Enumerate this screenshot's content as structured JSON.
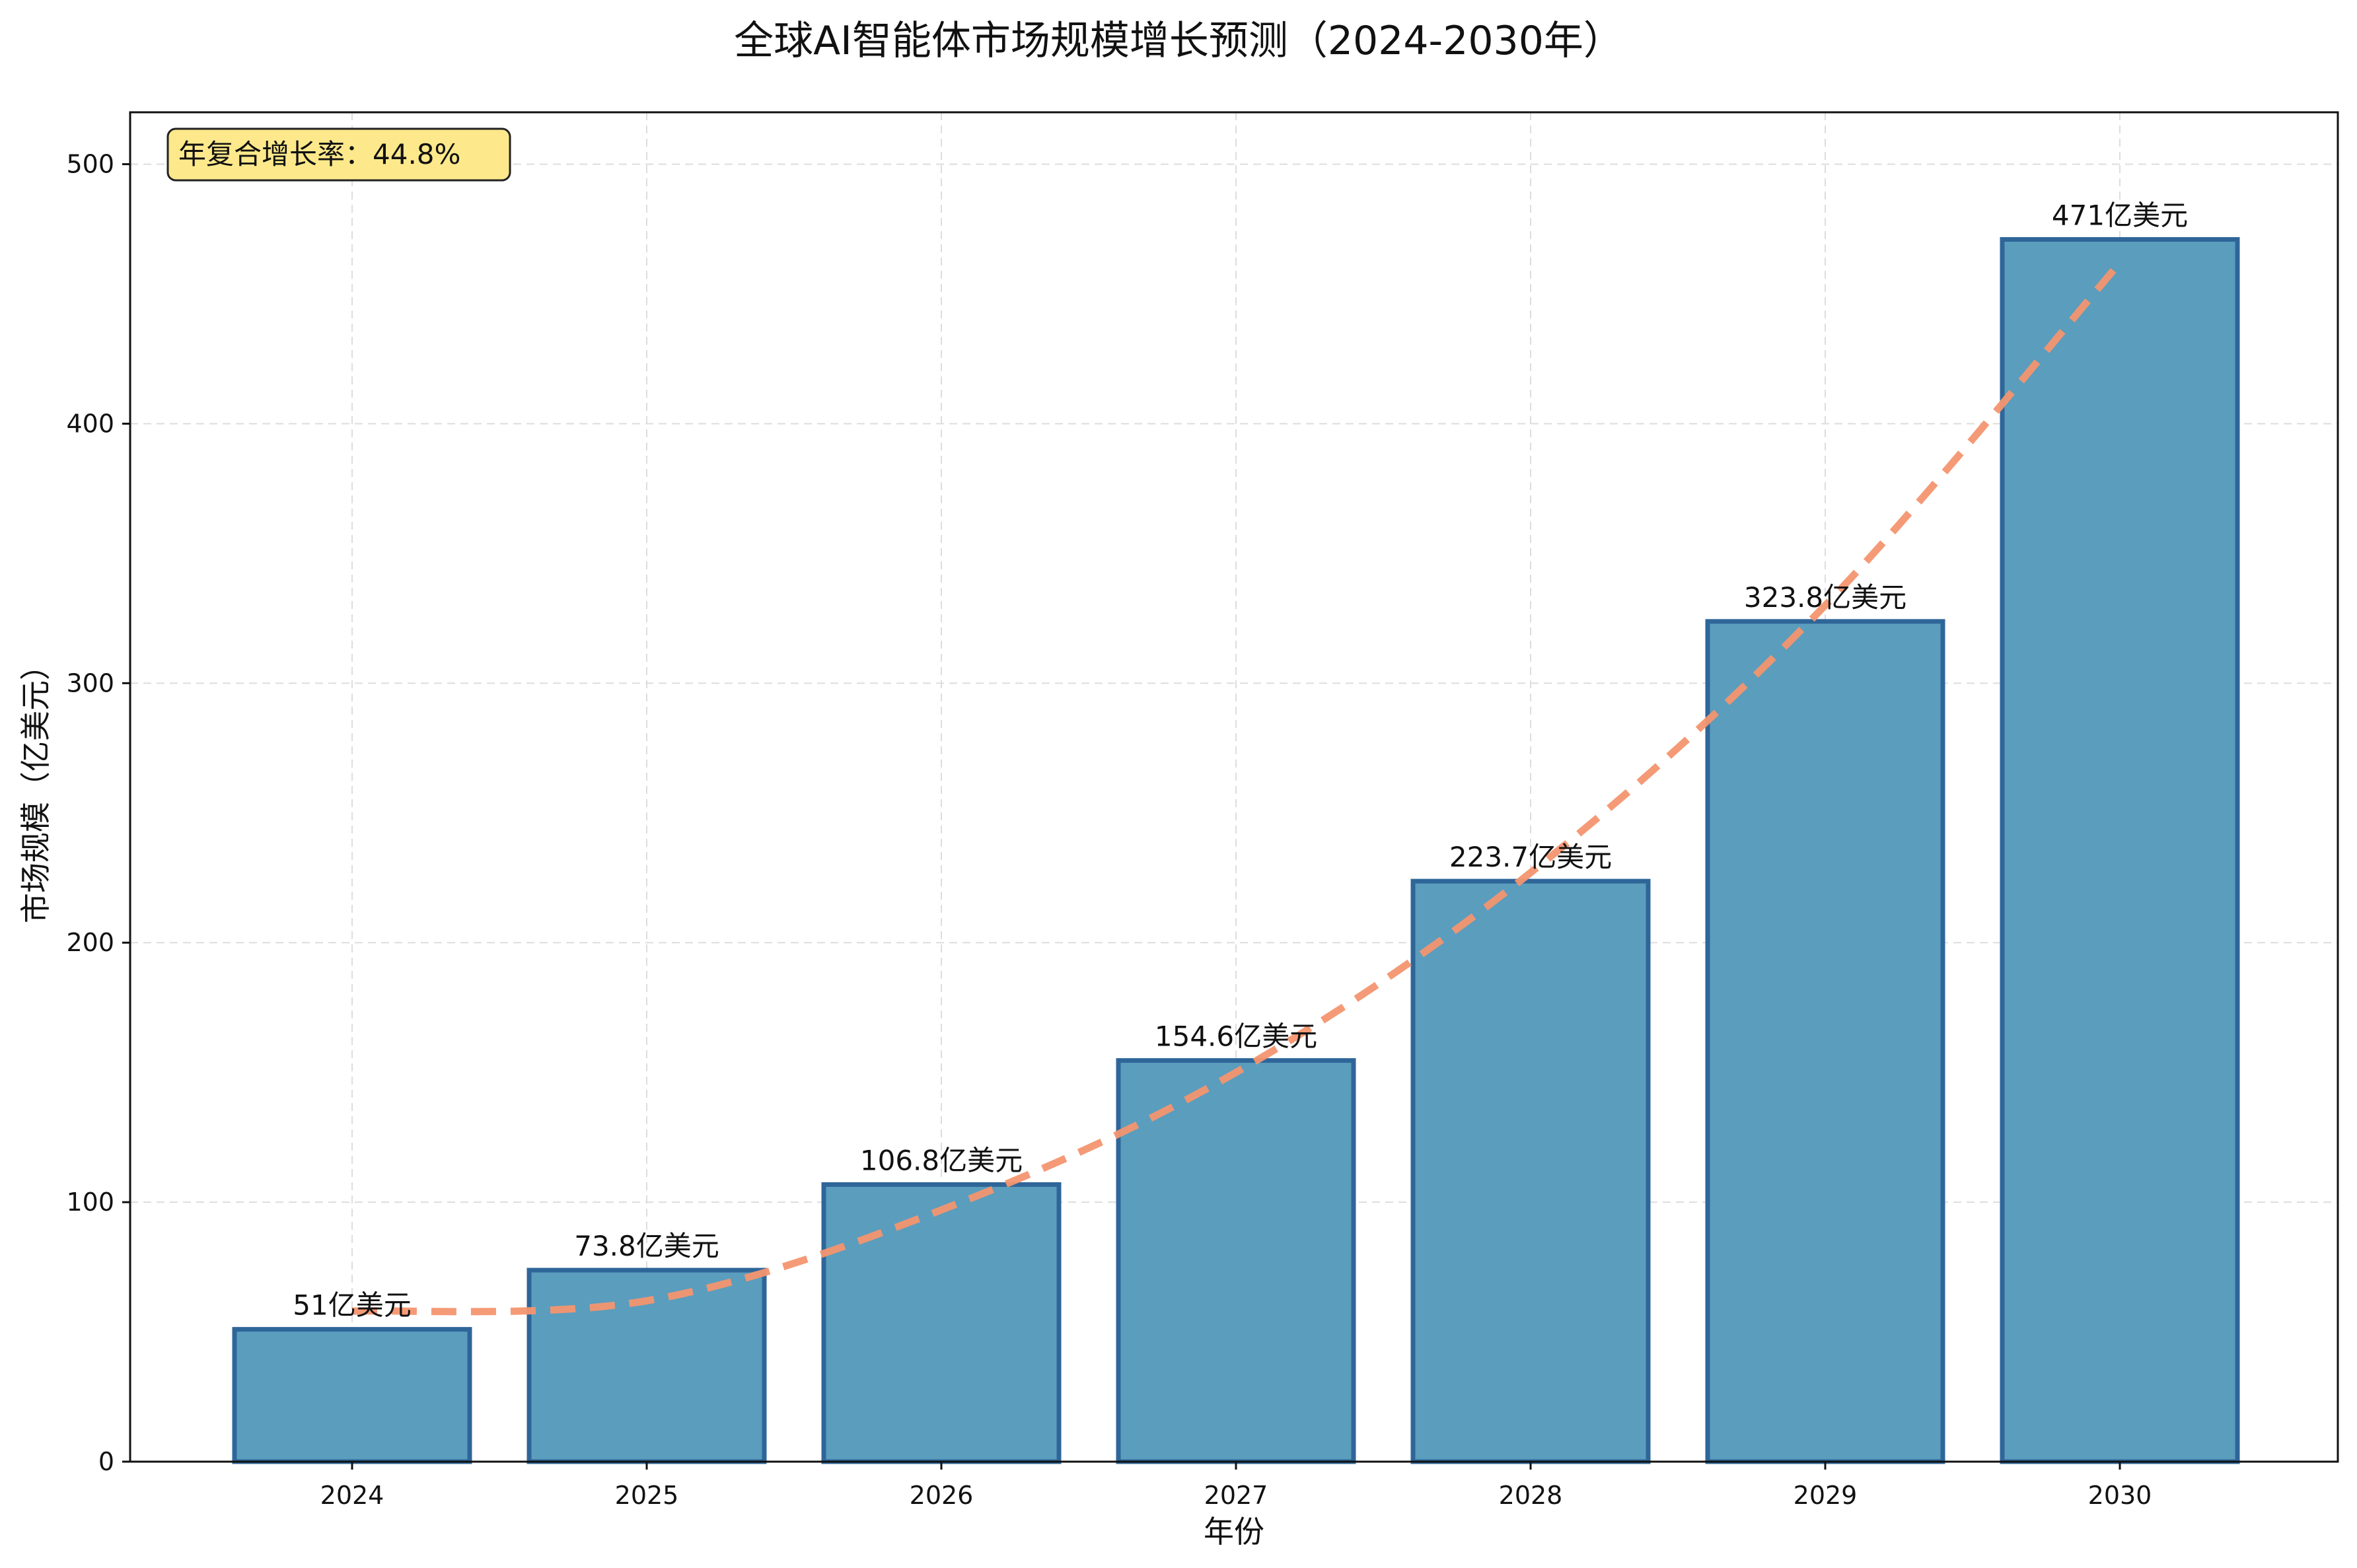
{
  "chart_data": {
    "type": "bar",
    "title": "全球AI智能体市场规模增长预测（2024-2030年）",
    "xlabel": "年份",
    "ylabel": "市场规模（亿美元）",
    "categories": [
      "2024",
      "2025",
      "2026",
      "2027",
      "2028",
      "2029",
      "2030"
    ],
    "values": [
      51,
      73.8,
      106.8,
      154.6,
      223.7,
      323.8,
      471
    ],
    "data_labels": [
      "51亿美元",
      "73.8亿美元",
      "106.8亿美元",
      "154.6亿美元",
      "223.7亿美元",
      "323.8亿美元",
      "471亿美元"
    ],
    "ylim": [
      0,
      520
    ],
    "yticks": [
      0,
      100,
      200,
      300,
      400,
      500
    ],
    "grid": true,
    "annotation": "年复合增长率：44.8%",
    "trend_line": {
      "style": "dashed",
      "values": [
        58,
        62,
        97,
        150,
        227,
        330,
        462
      ]
    },
    "colors": {
      "bar_fill": "#5b9dbd",
      "bar_edge": "#2f6699",
      "trend": "#f4956f",
      "annotation_bg": "#fde98b",
      "grid": "#dddddd"
    }
  }
}
